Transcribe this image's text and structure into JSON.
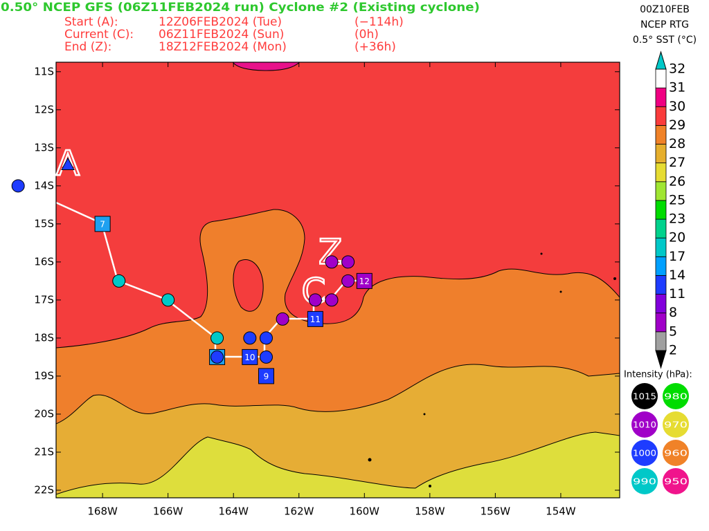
{
  "header": {
    "title": "0.50° NCEP GFS (06Z11FEB2024 run) Cyclone #2 (Existing cyclone)",
    "rows": [
      {
        "label": "Start (A):",
        "time": "12Z06FEB2024 (Tue)",
        "offset": "(−114h)"
      },
      {
        "label": "Current (C):",
        "time": "06Z11FEB2024 (Sun)",
        "offset": "(0h)"
      },
      {
        "label": "End (Z):",
        "time": "18Z12FEB2024 (Mon)",
        "offset": "(+36h)"
      }
    ]
  },
  "sst_info": [
    "00Z10FEB",
    "NCEP RTG",
    "0.5° SST (°C)"
  ],
  "map": {
    "lonlim": [
      -169.42,
      -152.2
    ],
    "latlim": [
      -10.75,
      -22.2
    ],
    "lat_ticks": [
      {
        "value": -11,
        "label": "11S"
      },
      {
        "value": -12,
        "label": "12S"
      },
      {
        "value": -13,
        "label": "13S"
      },
      {
        "value": -14,
        "label": "14S"
      },
      {
        "value": -15,
        "label": "15S"
      },
      {
        "value": -16,
        "label": "16S"
      },
      {
        "value": -17,
        "label": "17S"
      },
      {
        "value": -18,
        "label": "18S"
      },
      {
        "value": -19,
        "label": "19S"
      },
      {
        "value": -20,
        "label": "20S"
      },
      {
        "value": -21,
        "label": "21S"
      },
      {
        "value": -22,
        "label": "22S"
      }
    ],
    "lon_ticks": [
      {
        "value": -168,
        "label": "168W"
      },
      {
        "value": -166,
        "label": "166W"
      },
      {
        "value": -164,
        "label": "164W"
      },
      {
        "value": -162,
        "label": "162W"
      },
      {
        "value": -160,
        "label": "160W"
      },
      {
        "value": -158,
        "label": "158W"
      },
      {
        "value": -156,
        "label": "156W"
      },
      {
        "value": -154,
        "label": "154W"
      }
    ]
  },
  "colorbar": {
    "levels": [
      2,
      5,
      8,
      11,
      14,
      17,
      20,
      23,
      25,
      26,
      27,
      28,
      29,
      30,
      31,
      32
    ],
    "colors": [
      "#a0a0a0",
      "#a000c8",
      "#8200dc",
      "#1e3cff",
      "#00a0ff",
      "#00c8c8",
      "#00d28c",
      "#00dc00",
      "#a0e632",
      "#e6dc32",
      "#e6af2d",
      "#f08228",
      "#fa3c3c",
      "#f00082",
      "#ffffff"
    ],
    "over_color": "#00c8c8",
    "under_color": "#000000"
  },
  "track": {
    "points": [
      {
        "lon": -170.58,
        "lat": -14,
        "shape": "circle",
        "color": "#1e3cff"
      },
      {
        "lon": -169.06,
        "lat": -13.45,
        "shape": "triangle",
        "color": "#1e3cff"
      },
      {
        "lon": -168,
        "lat": -15,
        "shape": "square",
        "color": "#1ea0f0",
        "label": 7
      },
      {
        "lon": -167.5,
        "lat": -16.5,
        "shape": "circle",
        "color": "#00c8c8"
      },
      {
        "lon": -166,
        "lat": -17,
        "shape": "circle",
        "color": "#00c8c8"
      },
      {
        "lon": -164.5,
        "lat": -18,
        "shape": "circle",
        "color": "#00c8c8"
      },
      {
        "lon": -164.5,
        "lat": -18.5,
        "shape": "square",
        "color": "#1ea0f0"
      },
      {
        "lon": -164.5,
        "lat": -18.5,
        "shape": "circle",
        "color": "#1e3cff"
      },
      {
        "lon": -163.5,
        "lat": -18.5,
        "shape": "square",
        "color": "#1e3cff",
        "label": 10
      },
      {
        "lon": -163.5,
        "lat": -18,
        "shape": "circle",
        "color": "#1e3cff"
      },
      {
        "lon": -163,
        "lat": -18,
        "shape": "circle",
        "color": "#1e3cff"
      },
      {
        "lon": -163,
        "lat": -18.5,
        "shape": "circle",
        "color": "#1e3cff"
      },
      {
        "lon": -163,
        "lat": -19,
        "shape": "square",
        "color": "#1e3cff",
        "label": 9
      },
      {
        "lon": -162.5,
        "lat": -17.5,
        "shape": "circle",
        "color": "#a000c8"
      },
      {
        "lon": -161.5,
        "lat": -17.5,
        "shape": "square",
        "color": "#1e3cff",
        "label": 11
      },
      {
        "lon": -161.5,
        "lat": -17,
        "shape": "circle",
        "color": "#a000c8"
      },
      {
        "lon": -161,
        "lat": -17,
        "shape": "circle",
        "color": "#a000c8"
      },
      {
        "lon": -160.5,
        "lat": -16.5,
        "shape": "circle",
        "color": "#a000c8"
      },
      {
        "lon": -161,
        "lat": -16,
        "shape": "circle",
        "color": "#a000c8"
      },
      {
        "lon": -160.5,
        "lat": -16,
        "shape": "circle",
        "color": "#a000c8"
      },
      {
        "lon": -160,
        "lat": -16.5,
        "shape": "square",
        "color": "#a000c8",
        "label": 12
      }
    ],
    "letters": [
      {
        "text": "A",
        "lon": -169.06,
        "lat": -13.48
      },
      {
        "text": "C",
        "lon": -161.55,
        "lat": -16.84
      },
      {
        "text": "Z",
        "lon": -161.04,
        "lat": -15.8
      }
    ]
  },
  "intensity_legend": {
    "title": "Intensity (hPa):",
    "items": [
      {
        "value": 1015,
        "color": "#000000"
      },
      {
        "value": 980,
        "color": "#00dc00"
      },
      {
        "value": 1010,
        "color": "#a000c8"
      },
      {
        "value": 970,
        "color": "#e6dc32"
      },
      {
        "value": 1000,
        "color": "#1e3cff"
      },
      {
        "value": 960,
        "color": "#f08228"
      },
      {
        "value": 990,
        "color": "#00c8c8"
      },
      {
        "value": 950,
        "color": "#f0148c"
      }
    ]
  }
}
